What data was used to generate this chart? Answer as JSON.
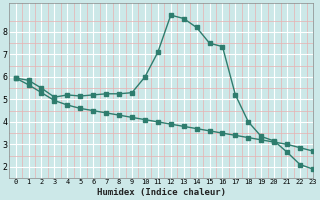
{
  "xlabel": "Humidex (Indice chaleur)",
  "bg_color": "#cce8e8",
  "line_color": "#2e7d6e",
  "xlim": [
    -0.5,
    23
  ],
  "ylim": [
    1.7,
    9.3
  ],
  "xticks": [
    0,
    1,
    2,
    3,
    4,
    5,
    6,
    7,
    8,
    9,
    10,
    11,
    12,
    13,
    14,
    15,
    16,
    17,
    18,
    19,
    20,
    21,
    22,
    23
  ],
  "yticks": [
    2,
    3,
    4,
    5,
    6,
    7,
    8
  ],
  "curve1_x": [
    0,
    1,
    2,
    3,
    4,
    5,
    6,
    7,
    8,
    9,
    10,
    11,
    12,
    13,
    14,
    15,
    16,
    17,
    18,
    19,
    20,
    21,
    22,
    23
  ],
  "curve1_y": [
    5.95,
    5.85,
    5.5,
    5.1,
    5.2,
    5.15,
    5.2,
    5.25,
    5.25,
    5.3,
    6.0,
    7.1,
    8.75,
    8.6,
    8.2,
    7.5,
    7.35,
    5.2,
    4.0,
    3.35,
    3.15,
    2.65,
    2.1,
    1.9
  ],
  "curve2_x": [
    0,
    1,
    2,
    3,
    4,
    5,
    6,
    7,
    8,
    9,
    10,
    11,
    12,
    13,
    14,
    15,
    16,
    17,
    18,
    19,
    20,
    21,
    22,
    23
  ],
  "curve2_y": [
    5.95,
    5.65,
    5.3,
    4.95,
    4.75,
    4.6,
    4.5,
    4.4,
    4.3,
    4.2,
    4.1,
    4.0,
    3.9,
    3.8,
    3.7,
    3.6,
    3.5,
    3.4,
    3.3,
    3.2,
    3.1,
    3.0,
    2.85,
    2.7
  ]
}
